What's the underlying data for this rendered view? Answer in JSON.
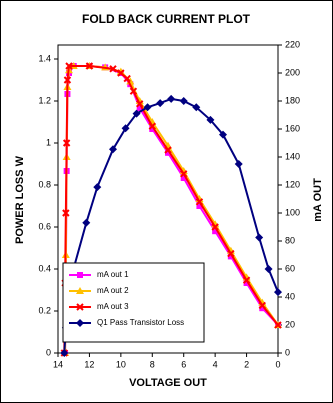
{
  "chart_data": {
    "type": "line",
    "title": "FOLD BACK CURRENT PLOT",
    "xlabel": "VOLTAGE OUT",
    "ylabel": "POWER LOSS W",
    "y2label": "mA OUT",
    "xlim": [
      14,
      0
    ],
    "xticks": [
      14,
      12,
      10,
      8,
      6,
      4,
      2,
      0
    ],
    "ylim": [
      0,
      1.4667
    ],
    "yticks": [
      0,
      0.2,
      0.4,
      0.6,
      0.8,
      1,
      1.2,
      1.4
    ],
    "y2lim": [
      0,
      220
    ],
    "y2ticks": [
      0,
      20,
      40,
      60,
      80,
      100,
      120,
      140,
      160,
      180,
      200,
      220
    ],
    "legend": "lower left",
    "series": [
      {
        "name": "mA out 1",
        "color": "#ff00ff",
        "marker": "square",
        "axis": "y2",
        "x": [
          13.55,
          13.5,
          13.45,
          13.4,
          13.3,
          13.0,
          12.0,
          11.0,
          10.0,
          9.4,
          8.8,
          8.0,
          7.0,
          6.0,
          5.0,
          4.0,
          3.0,
          2.0,
          1.0,
          0
        ],
        "values": [
          0,
          60,
          130,
          185,
          200,
          205,
          205,
          204,
          200,
          192,
          175,
          160,
          143,
          125,
          105,
          87,
          69,
          50,
          32,
          20
        ]
      },
      {
        "name": "mA out 2",
        "color": "#ffc000",
        "marker": "triangle",
        "axis": "y2",
        "x": [
          13.55,
          13.5,
          13.45,
          13.4,
          13.3,
          13.0,
          12.0,
          11.0,
          10.0,
          9.4,
          8.8,
          8.0,
          7.0,
          6.0,
          5.0,
          4.0,
          3.0,
          2.0,
          1.0,
          0
        ],
        "values": [
          0,
          70,
          140,
          190,
          202,
          205,
          205,
          204,
          201,
          194,
          180,
          165,
          148,
          130,
          110,
          92,
          73,
          54,
          36,
          20
        ]
      },
      {
        "name": "mA out 3",
        "color": "#ff0000",
        "marker": "x",
        "axis": "y2",
        "x": [
          13.6,
          13.55,
          13.5,
          13.45,
          13.4,
          13.3,
          12.0,
          10.5,
          10.0,
          9.6,
          9.2,
          8.8,
          8.0,
          7.0,
          6.0,
          5.0,
          4.0,
          3.0,
          2.0,
          1.0,
          0
        ],
        "values": [
          0,
          50,
          100,
          150,
          195,
          205,
          205,
          203,
          200,
          196,
          187,
          178,
          162,
          145,
          128,
          108,
          90,
          71,
          52,
          34,
          20
        ]
      },
      {
        "name": "Q1 Pass Transistor Loss",
        "color": "#000080",
        "marker": "diamond",
        "axis": "y",
        "x": [
          13.6,
          13.5,
          13.45,
          13.4,
          13.3,
          13.2,
          12.2,
          11.5,
          10.5,
          9.7,
          9.0,
          8.3,
          7.5,
          6.8,
          6.0,
          5.2,
          4.3,
          3.5,
          2.5,
          1.2,
          0.6,
          0
        ],
        "values": [
          0,
          0.12,
          0.2,
          0.26,
          0.31,
          0.35,
          0.62,
          0.79,
          0.97,
          1.07,
          1.14,
          1.17,
          1.19,
          1.21,
          1.2,
          1.17,
          1.11,
          1.04,
          0.9,
          0.55,
          0.4,
          0.29
        ]
      }
    ]
  }
}
